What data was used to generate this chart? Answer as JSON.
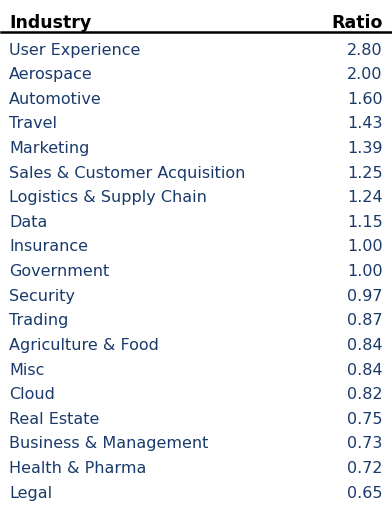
{
  "header": [
    "Industry",
    "Ratio"
  ],
  "rows": [
    [
      "User Experience",
      "2.80"
    ],
    [
      "Aerospace",
      "2.00"
    ],
    [
      "Automotive",
      "1.60"
    ],
    [
      "Travel",
      "1.43"
    ],
    [
      "Marketing",
      "1.39"
    ],
    [
      "Sales & Customer Acquisition",
      "1.25"
    ],
    [
      "Logistics & Supply Chain",
      "1.24"
    ],
    [
      "Data",
      "1.15"
    ],
    [
      "Insurance",
      "1.00"
    ],
    [
      "Government",
      "1.00"
    ],
    [
      "Security",
      "0.97"
    ],
    [
      "Trading",
      "0.87"
    ],
    [
      "Agriculture & Food",
      "0.84"
    ],
    [
      "Misc",
      "0.84"
    ],
    [
      "Cloud",
      "0.82"
    ],
    [
      "Real Estate",
      "0.75"
    ],
    [
      "Business & Management",
      "0.73"
    ],
    [
      "Health & Pharma",
      "0.72"
    ],
    [
      "Legal",
      "0.65"
    ]
  ],
  "header_color": "#000000",
  "row_text_color": "#1a3a6b",
  "bg_color": "#ffffff",
  "header_line_color": "#000000",
  "font_size": 11.5,
  "header_font_size": 12.5,
  "fig_width": 3.92,
  "fig_height": 5.18
}
